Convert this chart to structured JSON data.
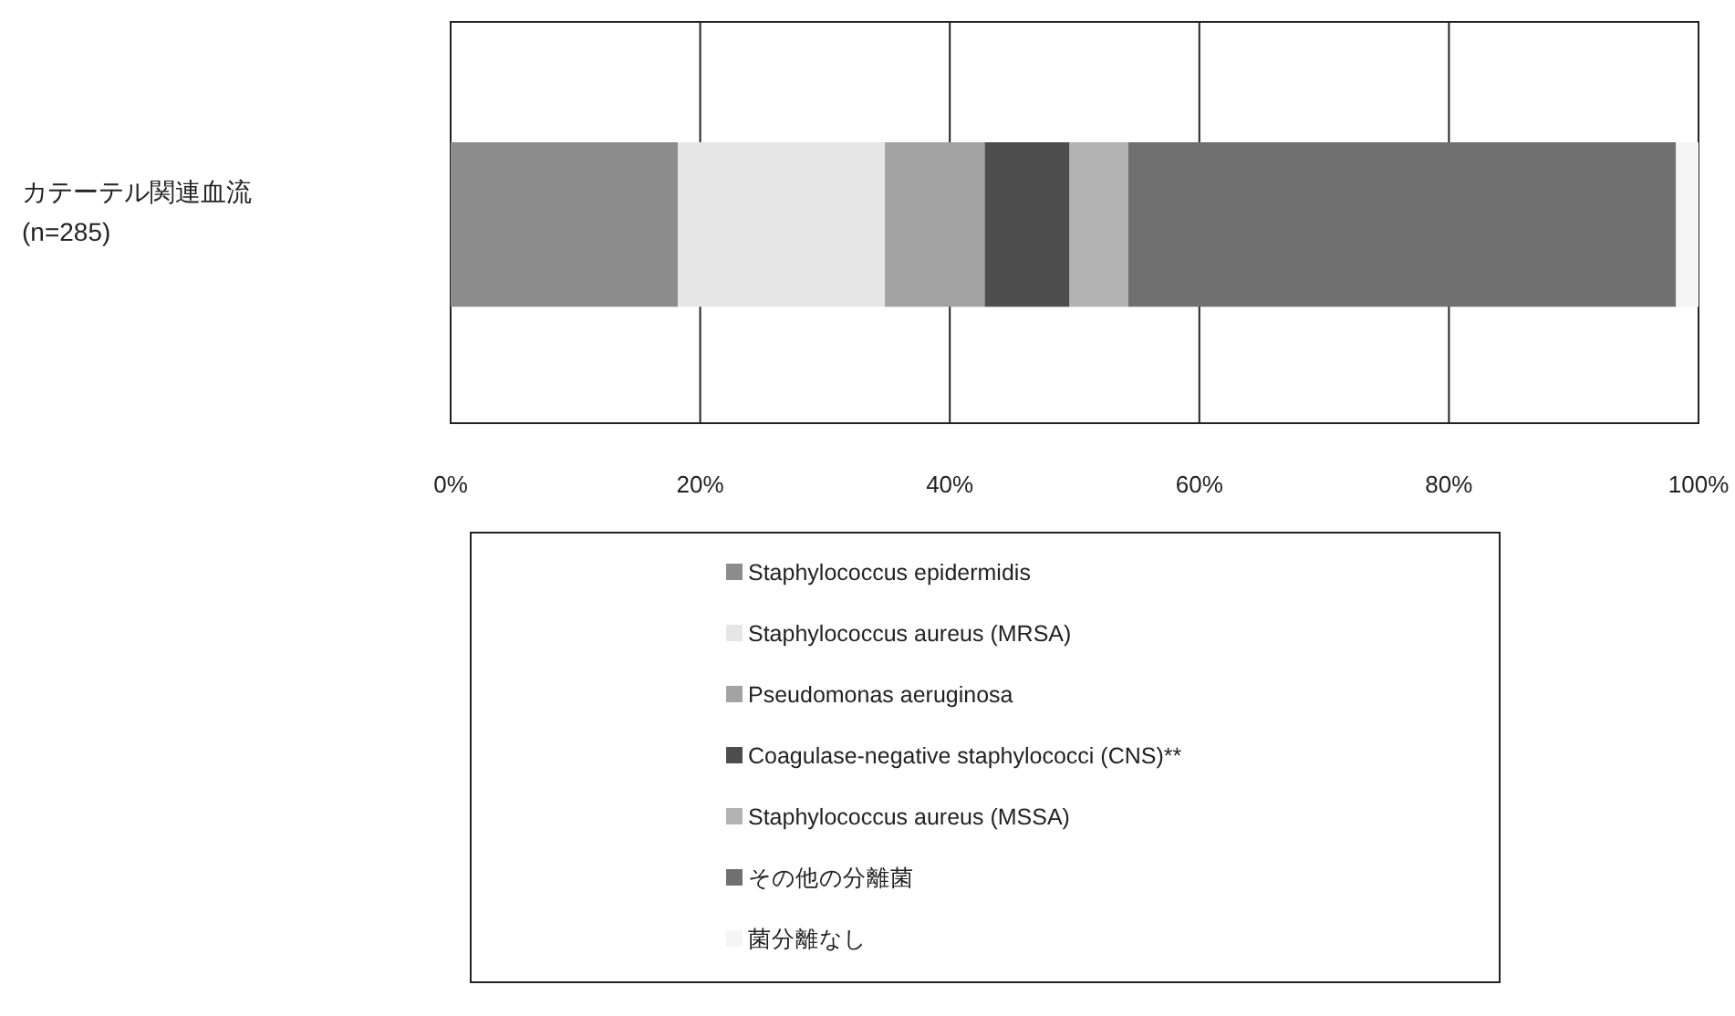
{
  "chart_data": {
    "type": "bar",
    "orientation": "horizontal",
    "stacked": true,
    "categories": [
      "カテーテル関連血流\n(n=285)"
    ],
    "series": [
      {
        "name": "Staphylococcus epidermidis",
        "color": "#8c8c8c",
        "values": [
          18.2
        ]
      },
      {
        "name": "Staphylococcus aureus (MRSA)",
        "color": "#e6e6e6",
        "values": [
          16.6
        ]
      },
      {
        "name": "Pseudomonas aeruginosa",
        "color": "#a3a3a3",
        "values": [
          8.0
        ]
      },
      {
        "name": "Coagulase-negative staphylococci (CNS)**",
        "color": "#4d4d4d",
        "values": [
          6.8
        ]
      },
      {
        "name": "Staphylococcus aureus (MSSA)",
        "color": "#b3b3b3",
        "values": [
          4.7
        ]
      },
      {
        "name": "その他の分離菌",
        "color": "#707070",
        "values": [
          43.9
        ]
      },
      {
        "name": "菌分離なし",
        "color": "#f5f5f5",
        "values": [
          1.8
        ]
      }
    ],
    "xlim": [
      0,
      100
    ],
    "xticks": [
      {
        "value": 0,
        "label": "0%"
      },
      {
        "value": 20,
        "label": "20%"
      },
      {
        "value": 40,
        "label": "40%"
      },
      {
        "value": 60,
        "label": "60%"
      },
      {
        "value": 80,
        "label": "80%"
      },
      {
        "value": 100,
        "label": "100%"
      }
    ],
    "grid": "x",
    "legend": "bottom"
  }
}
